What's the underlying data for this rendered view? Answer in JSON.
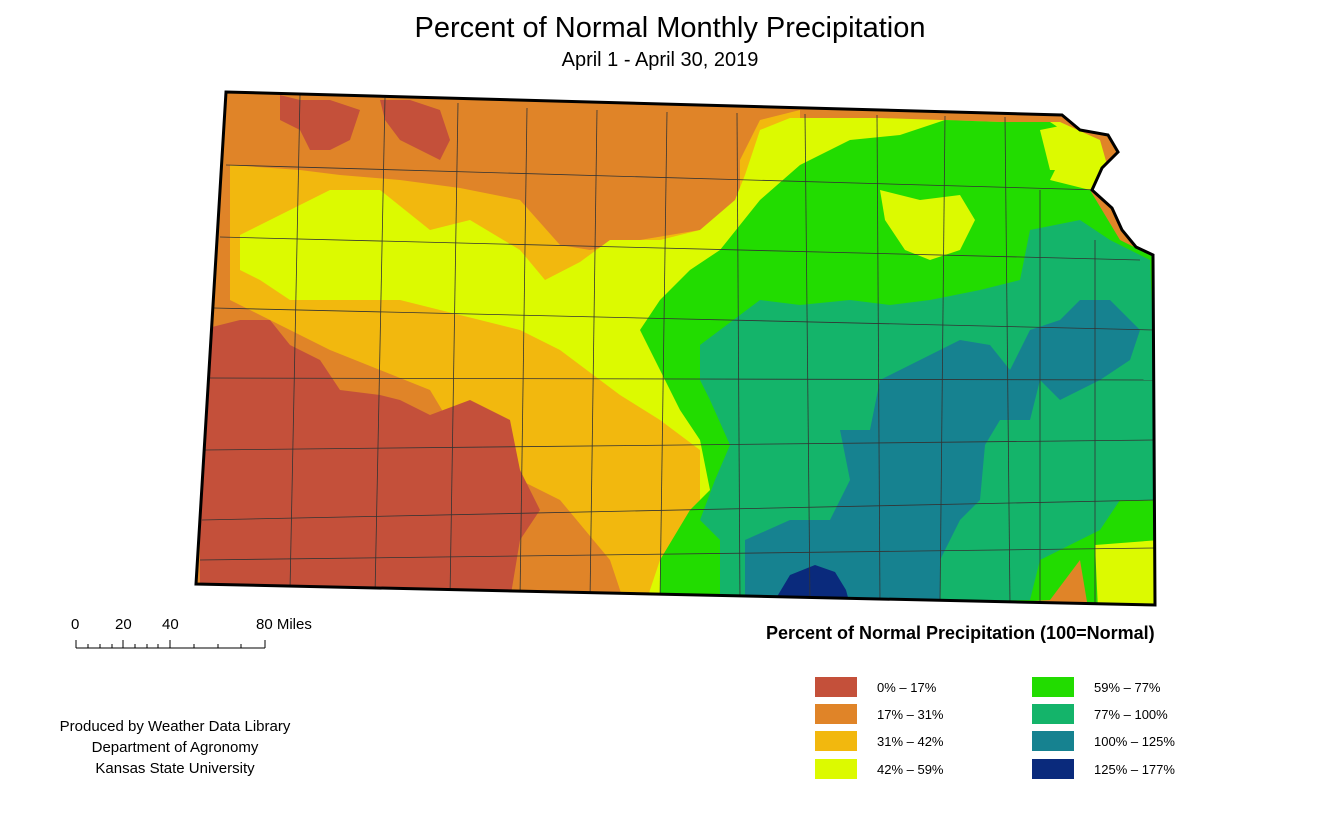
{
  "header": {
    "title": "Percent of Normal Monthly Precipitation",
    "subtitle": "April 1 - April 30, 2019"
  },
  "scale_bar": {
    "labels": [
      "0",
      "20",
      "40",
      "80 Miles"
    ]
  },
  "legend": {
    "title": "Percent of Normal Precipitation (100=Normal)",
    "classes": [
      {
        "label": "0% – 17%",
        "color": "#c4503a"
      },
      {
        "label": "17% – 31%",
        "color": "#e08428"
      },
      {
        "label": "31% – 42%",
        "color": "#f2b80e"
      },
      {
        "label": "42% – 59%",
        "color": "#dcfa00"
      },
      {
        "label": "59% – 77%",
        "color": "#22dc00"
      },
      {
        "label": "77% – 100%",
        "color": "#14b46a"
      },
      {
        "label": "100% – 125%",
        "color": "#168290"
      },
      {
        "label": "125% – 177%",
        "color": "#0a2a7c"
      }
    ]
  },
  "credits": {
    "line1": "Produced by Weather Data Library",
    "line2": "Department of Agronomy",
    "line3": "Kansas State University"
  }
}
